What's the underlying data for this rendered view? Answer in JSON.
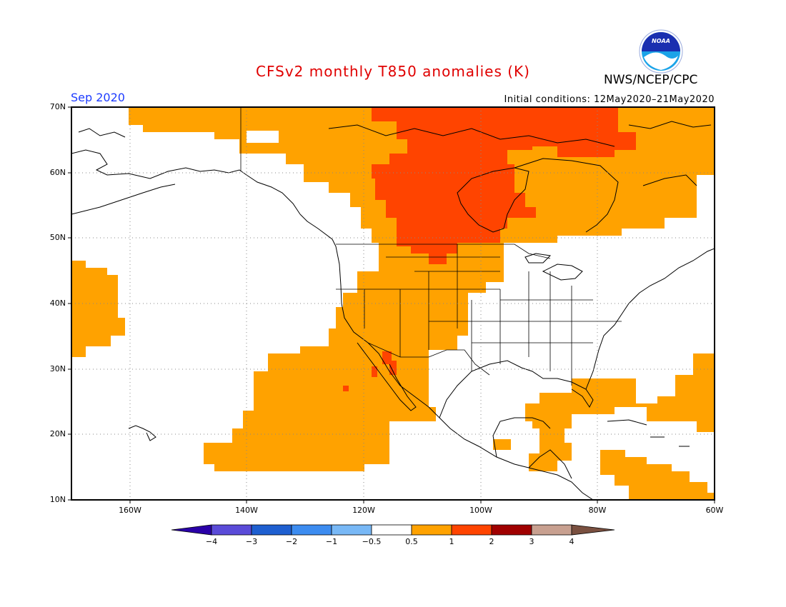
{
  "title": "CFSv2 monthly T850 anomalies (K)",
  "valid_month": "Sep 2020",
  "initial_conditions": "Initial conditions: 12May2020–21May2020",
  "agency": "NWS/NCEP/CPC",
  "logo_text": "NOAA",
  "latitude_labels": [
    "70N",
    "60N",
    "50N",
    "40N",
    "30N",
    "20N",
    "10N"
  ],
  "longitude_labels": [
    "160W",
    "140W",
    "120W",
    "100W",
    "80W",
    "60W"
  ],
  "colorbar": {
    "ticks": [
      "−4",
      "−3",
      "−2",
      "−1",
      "−0.5",
      "0.5",
      "1",
      "2",
      "3",
      "4"
    ],
    "colors": [
      "#2a00a8",
      "#5a4bd8",
      "#1e5fd0",
      "#3c8cf0",
      "#78b8f6",
      "#ffffff",
      "#ffa200",
      "#ff4400",
      "#a00000",
      "#c8a090",
      "#7a5040"
    ]
  },
  "anomaly_colors": {
    "0.5 to 1": "#ffa200",
    "1 to 2": "#ff4400"
  }
}
